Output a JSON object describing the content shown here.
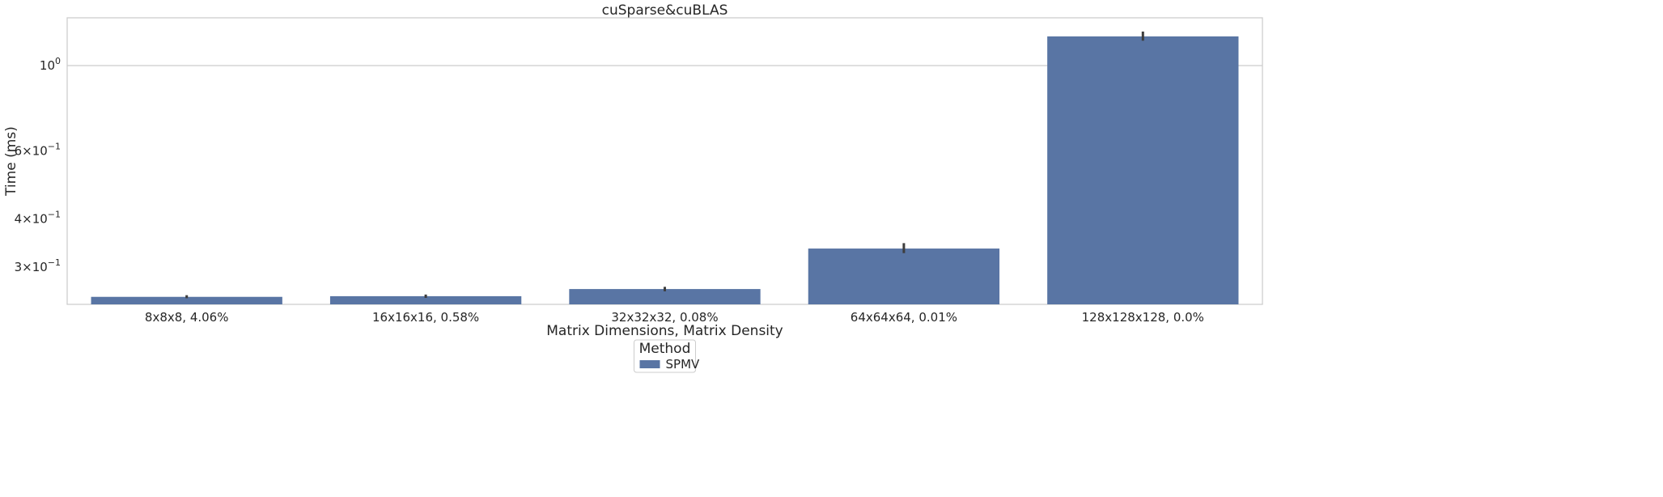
{
  "chart_data": {
    "type": "bar",
    "title": "cuSparse&cuBLAS",
    "xlabel": "Matrix Dimensions, Matrix Density",
    "ylabel": "Time (ms)",
    "yscale": "log",
    "ylim": [
      0.24,
      1.33
    ],
    "grid": "horizontal",
    "categories": [
      "8x8x8, 4.06%",
      "16x16x16, 0.58%",
      "32x32x32, 0.08%",
      "64x64x64, 0.01%",
      "128x128x128, 0.0%"
    ],
    "series": [
      {
        "name": "SPMV",
        "color": "#5975a4",
        "values": [
          0.251,
          0.252,
          0.263,
          0.335,
          1.19
        ],
        "error_low": [
          0.249,
          0.2495,
          0.2595,
          0.326,
          1.16
        ],
        "error_high": [
          0.2535,
          0.2545,
          0.2665,
          0.346,
          1.225
        ]
      }
    ],
    "yticks": [
      {
        "value": 1.0,
        "base": "10",
        "exp": "0"
      },
      {
        "value": 0.6,
        "base": "6×10",
        "exp": "−1"
      },
      {
        "value": 0.4,
        "base": "4×10",
        "exp": "−1"
      },
      {
        "value": 0.3,
        "base": "3×10",
        "exp": "−1"
      }
    ],
    "legend": {
      "title": "Method",
      "placement": "bottom-center"
    }
  }
}
